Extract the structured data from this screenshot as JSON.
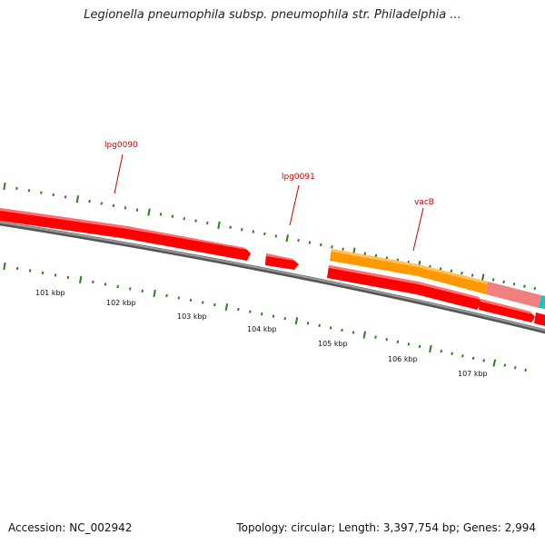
{
  "title": "Legionella pneumophila subsp. pneumophila str. Philadelphia ...",
  "accession": "Accession: NC_002942",
  "topology": "Topology: circular; Length: 3,397,754 bp; Genes: 2,994",
  "colors": {
    "gene_red": "#ff0000",
    "gene_orange": "#ff9900",
    "gene_pink": "#f08080",
    "gene_cyan": "#00cccc",
    "backbone": "#777777",
    "tick_green": "#2e7d20",
    "label_red": "#cc0000"
  },
  "gene_labels": [
    {
      "id": "lpg0090",
      "text": "lpg0090"
    },
    {
      "id": "lpg0091",
      "text": "lpg0091"
    },
    {
      "id": "vacB",
      "text": "vacB"
    }
  ],
  "kbp_labels": [
    "101 kbp",
    "102 kbp",
    "103 kbp",
    "104 kbp",
    "105 kbp",
    "106 kbp",
    "107 kbp"
  ]
}
